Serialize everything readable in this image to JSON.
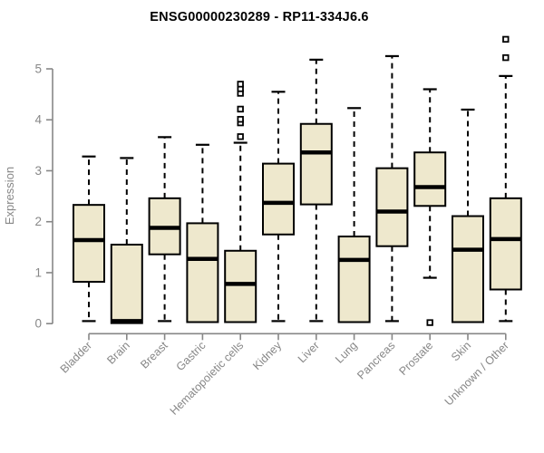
{
  "title": "ENSG00000230289 - RP11-334J6.6",
  "chart_data": {
    "type": "boxplot",
    "title": "ENSG00000230289 - RP11-334J6.6",
    "xlabel": "",
    "ylabel": "Expression",
    "ylim": [
      0,
      5.6
    ],
    "yticks": [
      0,
      1,
      2,
      3,
      4,
      5
    ],
    "grid": false,
    "legend": "none",
    "box_fill": "#EEE8CD",
    "box_stroke": "#000000",
    "axis_color": "#878787",
    "categories": [
      "Bladder",
      "Brain",
      "Breast",
      "Gastric",
      "Hematopoietic cells",
      "Kidney",
      "Liver",
      "Lung",
      "Pancreas",
      "Prostate",
      "Skin",
      "Unknown / Other"
    ],
    "boxes": [
      {
        "category": "Bladder",
        "whisker_low": 0.05,
        "q1": 0.82,
        "median": 1.64,
        "q3": 2.33,
        "whisker_high": 3.28,
        "outliers": []
      },
      {
        "category": "Brain",
        "whisker_low": 0.01,
        "q1": 0.01,
        "median": 0.05,
        "q3": 1.55,
        "whisker_high": 3.25,
        "outliers": []
      },
      {
        "category": "Breast",
        "whisker_low": 0.05,
        "q1": 1.36,
        "median": 1.88,
        "q3": 2.46,
        "whisker_high": 3.66,
        "outliers": []
      },
      {
        "category": "Gastric",
        "whisker_low": 0.03,
        "q1": 0.03,
        "median": 1.27,
        "q3": 1.97,
        "whisker_high": 3.51,
        "outliers": []
      },
      {
        "category": "Hematopoietic cells",
        "whisker_low": 0.03,
        "q1": 0.03,
        "median": 0.78,
        "q3": 1.43,
        "whisker_high": 3.55,
        "outliers": [
          3.67,
          3.94,
          4.01,
          4.21,
          4.52,
          4.61,
          4.7
        ]
      },
      {
        "category": "Kidney",
        "whisker_low": 0.05,
        "q1": 1.75,
        "median": 2.37,
        "q3": 3.14,
        "whisker_high": 4.55,
        "outliers": []
      },
      {
        "category": "Liver",
        "whisker_low": 0.05,
        "q1": 2.34,
        "median": 3.36,
        "q3": 3.92,
        "whisker_high": 5.18,
        "outliers": []
      },
      {
        "category": "Lung",
        "whisker_low": 0.03,
        "q1": 0.03,
        "median": 1.25,
        "q3": 1.71,
        "whisker_high": 4.23,
        "outliers": []
      },
      {
        "category": "Pancreas",
        "whisker_low": 0.05,
        "q1": 1.52,
        "median": 2.2,
        "q3": 3.05,
        "whisker_high": 5.25,
        "outliers": []
      },
      {
        "category": "Prostate",
        "whisker_low": 0.9,
        "q1": 2.31,
        "median": 2.68,
        "q3": 3.36,
        "whisker_high": 4.6,
        "outliers": [
          0.02
        ]
      },
      {
        "category": "Skin",
        "whisker_low": 0.03,
        "q1": 0.03,
        "median": 1.45,
        "q3": 2.11,
        "whisker_high": 4.2,
        "outliers": []
      },
      {
        "category": "Unknown / Other",
        "whisker_low": 0.05,
        "q1": 0.67,
        "median": 1.66,
        "q3": 2.46,
        "whisker_high": 4.86,
        "outliers": [
          5.22,
          5.58
        ]
      }
    ]
  }
}
